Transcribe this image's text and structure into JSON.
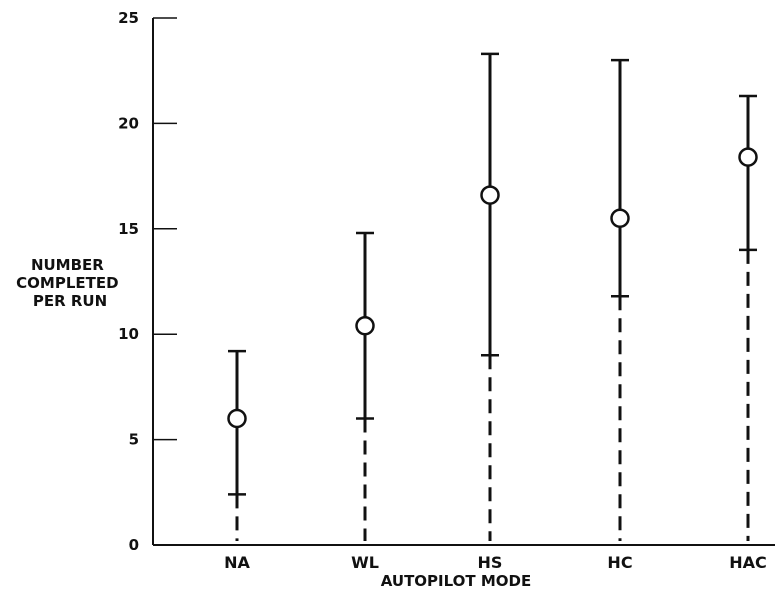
{
  "chart_data": {
    "type": "scatter",
    "xlabel": "AUTOPILOT MODE",
    "ylabel_lines": [
      "NUMBER",
      "COMPLETED",
      "PER RUN"
    ],
    "categories": [
      "NA",
      "WL",
      "HS",
      "HC",
      "HAC"
    ],
    "ylim": [
      0,
      25
    ],
    "yticks": [
      0,
      5,
      10,
      15,
      20,
      25
    ],
    "grid": false,
    "series": [
      {
        "means": [
          6.0,
          10.4,
          16.6,
          15.5,
          18.4
        ],
        "upper": [
          9.2,
          14.8,
          23.3,
          23.0,
          21.3
        ],
        "lower": [
          2.4,
          6.0,
          9.0,
          11.8,
          14.0
        ]
      }
    ]
  }
}
